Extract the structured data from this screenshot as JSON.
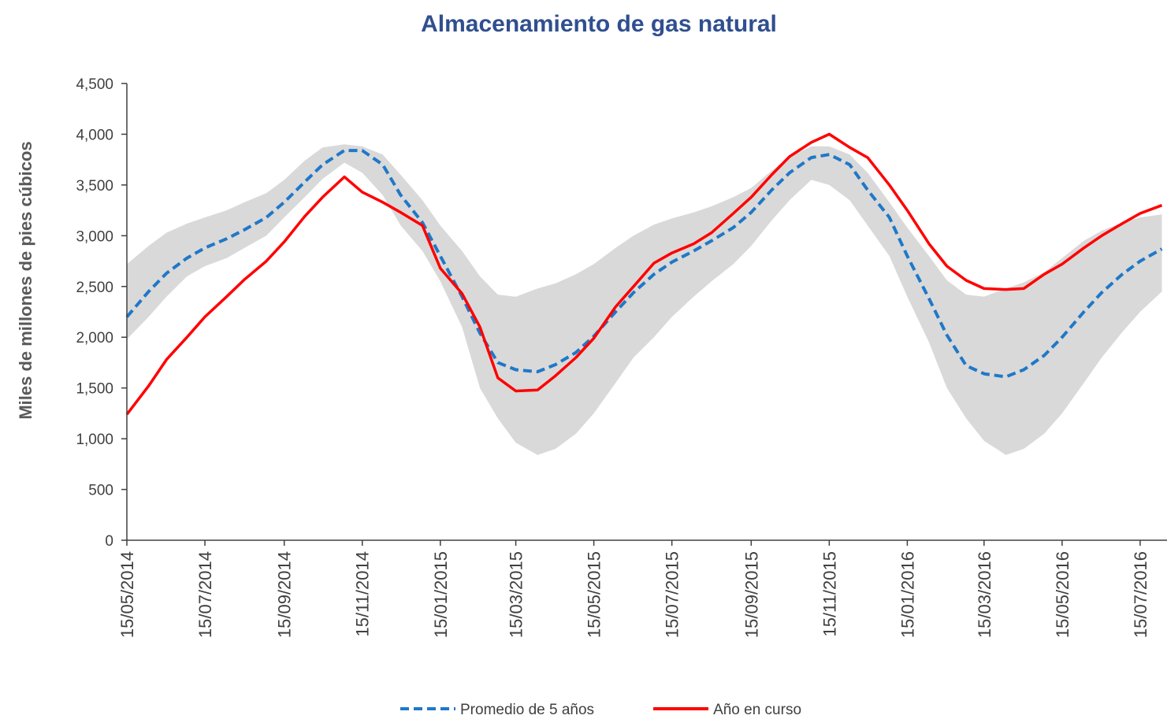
{
  "chart_data": {
    "type": "line",
    "title": "Almacenamiento de gas natural",
    "y_label": "Miles de millones de pies cúbicos",
    "x": [
      "2014-05-15",
      "2014-06-01",
      "2014-06-15",
      "2014-07-01",
      "2014-07-15",
      "2014-08-01",
      "2014-08-15",
      "2014-09-01",
      "2014-09-15",
      "2014-10-01",
      "2014-10-15",
      "2014-11-01",
      "2014-11-15",
      "2014-12-01",
      "2014-12-15",
      "2015-01-01",
      "2015-01-15",
      "2015-02-01",
      "2015-02-15",
      "2015-03-01",
      "2015-03-15",
      "2015-04-01",
      "2015-04-15",
      "2015-05-01",
      "2015-05-15",
      "2015-06-01",
      "2015-06-15",
      "2015-07-01",
      "2015-07-15",
      "2015-08-01",
      "2015-08-15",
      "2015-09-01",
      "2015-09-15",
      "2015-10-01",
      "2015-10-15",
      "2015-11-01",
      "2015-11-15",
      "2015-12-01",
      "2015-12-15",
      "2016-01-01",
      "2016-01-15",
      "2016-02-01",
      "2016-02-15",
      "2016-03-01",
      "2016-03-15",
      "2016-04-01",
      "2016-04-15",
      "2016-05-01",
      "2016-05-15",
      "2016-06-01",
      "2016-06-15",
      "2016-07-01",
      "2016-07-15",
      "2016-08-01"
    ],
    "range": {
      "color": "#d9d9d9",
      "high": [
        2720,
        2900,
        3030,
        3120,
        3180,
        3250,
        3330,
        3420,
        3550,
        3740,
        3870,
        3900,
        3880,
        3800,
        3600,
        3350,
        3100,
        2850,
        2600,
        2420,
        2400,
        2480,
        2530,
        2620,
        2720,
        2880,
        3000,
        3110,
        3170,
        3230,
        3290,
        3380,
        3470,
        3640,
        3780,
        3880,
        3880,
        3800,
        3620,
        3330,
        3080,
        2800,
        2560,
        2420,
        2400,
        2480,
        2540,
        2640,
        2780,
        2950,
        3050,
        3130,
        3180,
        3210
      ],
      "low": [
        1980,
        2200,
        2400,
        2600,
        2700,
        2780,
        2880,
        3000,
        3180,
        3380,
        3560,
        3720,
        3620,
        3400,
        3100,
        2850,
        2550,
        2100,
        1500,
        1200,
        960,
        840,
        900,
        1050,
        1250,
        1550,
        1800,
        2000,
        2200,
        2400,
        2550,
        2720,
        2900,
        3150,
        3350,
        3550,
        3500,
        3350,
        3100,
        2800,
        2400,
        1950,
        1500,
        1200,
        980,
        840,
        900,
        1050,
        1250,
        1550,
        1800,
        2050,
        2250,
        2450
      ]
    },
    "series": [
      {
        "name": "Promedio de 5 años",
        "color": "#1f78c8",
        "dashed": true,
        "values": [
          2200,
          2450,
          2630,
          2780,
          2880,
          2970,
          3060,
          3180,
          3330,
          3530,
          3700,
          3840,
          3840,
          3700,
          3400,
          3130,
          2800,
          2400,
          2040,
          1750,
          1680,
          1660,
          1730,
          1850,
          2010,
          2250,
          2440,
          2620,
          2740,
          2850,
          2950,
          3080,
          3230,
          3450,
          3620,
          3770,
          3800,
          3700,
          3450,
          3180,
          2800,
          2380,
          2020,
          1720,
          1640,
          1610,
          1680,
          1820,
          2000,
          2250,
          2440,
          2620,
          2750,
          2870
        ]
      },
      {
        "name": "Año en curso",
        "color": "#ff0000",
        "dashed": false,
        "values": [
          1240,
          1520,
          1780,
          2000,
          2200,
          2400,
          2570,
          2750,
          2940,
          3190,
          3380,
          3580,
          3430,
          3330,
          3230,
          3100,
          2680,
          2430,
          2100,
          1600,
          1470,
          1480,
          1620,
          1800,
          1990,
          2300,
          2500,
          2730,
          2830,
          2920,
          3030,
          3220,
          3380,
          3600,
          3780,
          3920,
          4000,
          3870,
          3770,
          3500,
          3250,
          2920,
          2700,
          2560,
          2480,
          2470,
          2480,
          2620,
          2720,
          2880,
          3000,
          3120,
          3220,
          3300
        ]
      }
    ],
    "xlim": [
      "2014-05-15",
      "2016-08-05"
    ],
    "xticks": [
      {
        "value": "2014-05-15",
        "label": "15/05/2014"
      },
      {
        "value": "2014-07-15",
        "label": "15/07/2014"
      },
      {
        "value": "2014-09-15",
        "label": "15/09/2014"
      },
      {
        "value": "2014-11-15",
        "label": "15/11/2014"
      },
      {
        "value": "2015-01-15",
        "label": "15/01/2015"
      },
      {
        "value": "2015-03-15",
        "label": "15/03/2015"
      },
      {
        "value": "2015-05-15",
        "label": "15/05/2015"
      },
      {
        "value": "2015-07-15",
        "label": "15/07/2015"
      },
      {
        "value": "2015-09-15",
        "label": "15/09/2015"
      },
      {
        "value": "2015-11-15",
        "label": "15/11/2015"
      },
      {
        "value": "2016-01-15",
        "label": "15/01/2016"
      },
      {
        "value": "2016-03-15",
        "label": "15/03/2016"
      },
      {
        "value": "2016-05-15",
        "label": "15/05/2016"
      },
      {
        "value": "2016-07-15",
        "label": "15/07/2016"
      }
    ],
    "ylim": [
      0,
      4500
    ],
    "yticks": [
      0,
      500,
      {
        "value": 1000,
        "label": "1,000"
      },
      {
        "value": 1500,
        "label": "1,500"
      },
      {
        "value": 2000,
        "label": "2,000"
      },
      {
        "value": 2500,
        "label": "2,500"
      },
      {
        "value": 3000,
        "label": "3,000"
      },
      {
        "value": 3500,
        "label": "3,500"
      },
      {
        "value": 4000,
        "label": "4,000"
      },
      {
        "value": 4500,
        "label": "4,500"
      }
    ],
    "grid": false,
    "legend": "bottom"
  }
}
